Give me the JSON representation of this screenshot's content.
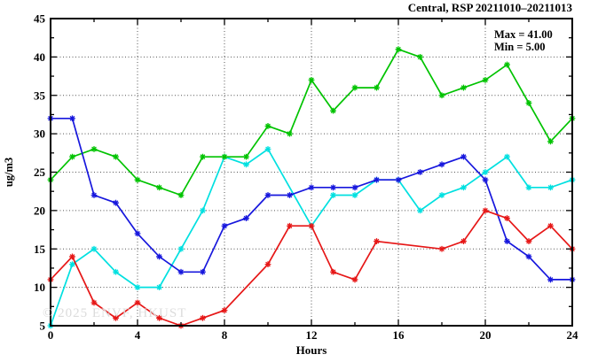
{
  "title": "Central, RSP 20211010–20211013",
  "annotation": {
    "max_label": "Max = 41.00",
    "min_label": "Min =  5.00"
  },
  "watermark": "© 2025 ENVF, HKUST",
  "axis": {
    "y_label": "ug/m3",
    "x_label": "Hours"
  },
  "colors": {
    "green": "#00c300",
    "blue": "#1717dd",
    "cyan": "#00e0e0",
    "red": "#e61717",
    "grid": "#555555",
    "axis": "#000000",
    "watermark": "#dcdcdc"
  },
  "chart_data": {
    "type": "line",
    "title": "Central, RSP 20211010–20211013",
    "xlabel": "Hours",
    "ylabel": "ug/m3",
    "xlim": [
      0,
      24
    ],
    "ylim": [
      5,
      45
    ],
    "x_major_ticks": [
      0,
      4,
      8,
      12,
      16,
      20,
      24
    ],
    "x_minor_ticks": [
      2,
      6,
      10,
      14,
      18,
      22
    ],
    "y_major_ticks": [
      5,
      10,
      15,
      20,
      25,
      30,
      35,
      40,
      45
    ],
    "y_minor_ticks": [
      7.5,
      12.5,
      17.5,
      22.5,
      27.5,
      32.5,
      37.5,
      42.5
    ],
    "grid": "dotted lines at major ticks, mirrored tick marks on all four sides",
    "legend_position": "none (Max/Min annotation box top-right inside plot)",
    "marker": "asterisk",
    "x": [
      0,
      1,
      2,
      3,
      4,
      5,
      6,
      7,
      8,
      9,
      10,
      11,
      12,
      13,
      14,
      15,
      16,
      17,
      18,
      19,
      20,
      21,
      22,
      23,
      24
    ],
    "series": [
      {
        "name": "cyan",
        "color": "#00e0e0",
        "values": [
          5,
          13,
          15,
          12,
          10,
          10,
          15,
          20,
          27,
          26,
          28,
          null,
          18,
          22,
          22,
          24,
          24,
          20,
          22,
          23,
          25,
          27,
          23,
          23,
          24
        ]
      },
      {
        "name": "green",
        "color": "#00c300",
        "values": [
          24,
          27,
          28,
          27,
          24,
          23,
          22,
          27,
          27,
          27,
          31,
          30,
          37,
          33,
          36,
          36,
          41,
          40,
          35,
          36,
          37,
          39,
          34,
          29,
          32
        ]
      },
      {
        "name": "blue",
        "color": "#1717dd",
        "values": [
          32,
          32,
          22,
          21,
          17,
          14,
          12,
          12,
          18,
          19,
          22,
          22,
          23,
          23,
          23,
          24,
          24,
          25,
          26,
          27,
          24,
          16,
          14,
          11,
          11
        ]
      },
      {
        "name": "red",
        "color": "#e61717",
        "values": [
          11,
          14,
          8,
          6,
          8,
          6,
          5,
          6,
          7,
          null,
          13,
          18,
          18,
          12,
          11,
          16,
          null,
          null,
          15,
          16,
          20,
          19,
          16,
          18,
          15
        ]
      }
    ],
    "stats": {
      "max": 41.0,
      "min": 5.0
    }
  }
}
